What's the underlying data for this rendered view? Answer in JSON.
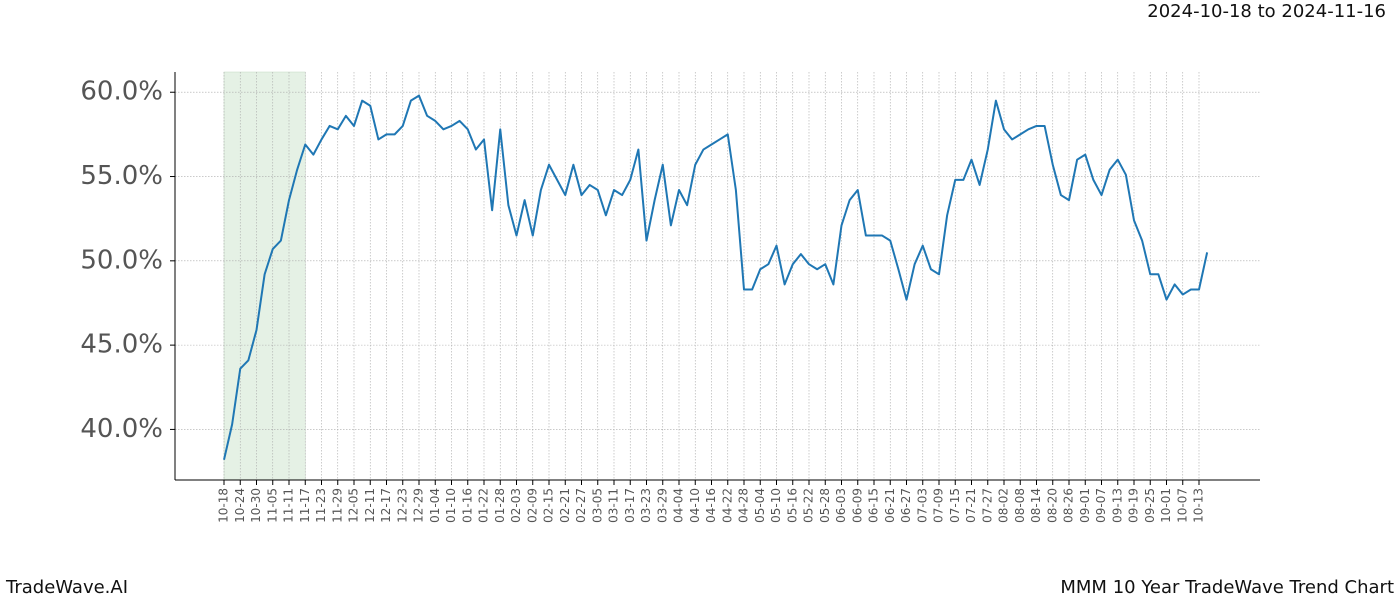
{
  "chart_data": {
    "type": "line",
    "title": "MMM 10 Year TradeWave Trend Chart",
    "subtitle": "2024-10-18 to 2024-11-16",
    "brand": "TradeWave.AI",
    "categories": [
      "10-18",
      null,
      "10-24",
      null,
      "10-30",
      null,
      "11-05",
      null,
      "11-11",
      null,
      "11-17",
      null,
      "11-23",
      null,
      "11-29",
      null,
      "12-05",
      null,
      "12-11",
      null,
      "12-17",
      null,
      "12-23",
      null,
      "12-29",
      null,
      "01-04",
      null,
      "01-10",
      null,
      "01-16",
      null,
      "01-22",
      null,
      "01-28",
      null,
      "02-03",
      null,
      "02-09",
      null,
      "02-15",
      null,
      "02-21",
      null,
      "02-27",
      null,
      "03-05",
      null,
      "03-11",
      null,
      "03-17",
      null,
      "03-23",
      null,
      "03-29",
      null,
      "04-04",
      null,
      "04-10",
      null,
      "04-16",
      null,
      "04-22",
      null,
      "04-28",
      null,
      "05-04",
      null,
      "05-10",
      null,
      "05-16",
      null,
      "05-22",
      null,
      "05-28",
      null,
      "06-03",
      null,
      "06-09",
      null,
      "06-15",
      null,
      "06-21",
      null,
      "06-27",
      null,
      "07-03",
      null,
      "07-09",
      null,
      "07-15",
      null,
      "07-21",
      null,
      "07-27",
      null,
      "08-02",
      null,
      "08-08",
      null,
      "08-14",
      null,
      "08-20",
      null,
      "08-26",
      null,
      "09-01",
      null,
      "09-07",
      null,
      "09-13",
      null,
      "09-19",
      null,
      "09-25",
      null,
      "10-01",
      null,
      "10-07",
      null,
      "10-13",
      null
    ],
    "values": [
      38.2,
      40.3,
      43.6,
      44.1,
      45.9,
      49.2,
      50.7,
      51.2,
      53.6,
      55.4,
      56.9,
      56.3,
      57.2,
      58.0,
      57.8,
      58.6,
      58.0,
      59.5,
      59.2,
      57.2,
      57.5,
      57.5,
      58.0,
      59.5,
      59.8,
      58.6,
      58.3,
      57.8,
      58.0,
      58.3,
      57.8,
      56.6,
      57.2,
      53.0,
      57.8,
      53.3,
      51.5,
      53.6,
      51.5,
      54.2,
      55.7,
      54.8,
      53.9,
      55.7,
      53.9,
      54.5,
      54.2,
      52.7,
      54.2,
      53.9,
      54.8,
      56.6,
      51.2,
      53.6,
      55.7,
      52.1,
      54.2,
      53.3,
      55.7,
      56.6,
      56.9,
      57.2,
      57.5,
      54.2,
      48.3,
      48.3,
      49.5,
      49.8,
      50.9,
      48.6,
      49.8,
      50.4,
      49.8,
      49.5,
      49.8,
      48.6,
      52.1,
      53.6,
      54.2,
      51.5,
      51.5,
      51.5,
      51.2,
      49.5,
      47.7,
      49.8,
      50.9,
      49.5,
      49.2,
      52.7,
      54.8,
      54.8,
      56.0,
      54.5,
      56.6,
      59.5,
      57.8,
      57.2,
      57.5,
      57.8,
      58.0,
      58.0,
      55.7,
      53.9,
      53.6,
      56.0,
      56.3,
      54.8,
      53.9,
      55.4,
      56.0,
      55.1,
      52.4,
      51.2,
      49.2,
      49.2,
      47.7,
      48.6,
      48.0,
      48.3,
      48.3,
      50.5
    ],
    "color": "#1f77b4",
    "shade": [
      "10-18",
      "11-17"
    ],
    "shade_color": "#d5e8d4",
    "ylim": [
      37.0,
      61.2
    ],
    "yticks": [
      {
        "value": 40,
        "label": "40.0%"
      },
      {
        "value": 45,
        "label": "45.0%"
      },
      {
        "value": 50,
        "label": "50.0%"
      },
      {
        "value": 55,
        "label": "55.0%"
      },
      {
        "value": 60,
        "label": "60.0%"
      }
    ],
    "grid": true
  }
}
